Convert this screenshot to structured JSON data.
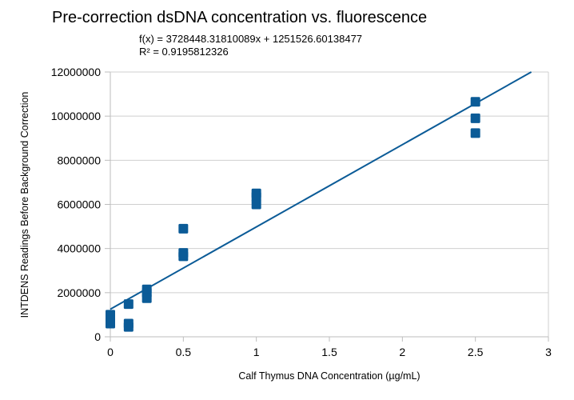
{
  "chart_data": {
    "type": "scatter",
    "title": "Pre-correction dsDNA concentration vs. fluorescence",
    "trendline": {
      "equation": "f(x) = 3728448.31810089x + 1251526.60138477",
      "r_squared": "R² = 0.9195812326",
      "slope": 3728448.31810089,
      "intercept": 1251526.60138477
    },
    "xlabel": "Calf Thymus DNA Concentration (µg/mL)",
    "ylabel": "INTDENS Readings Before Background Correction",
    "xlim": [
      0,
      3
    ],
    "ylim": [
      0,
      12000000
    ],
    "x_ticks": [
      "0",
      "0.5",
      "1",
      "1.5",
      "2",
      "2.5",
      "3"
    ],
    "y_ticks": [
      "0",
      "2000000",
      "4000000",
      "6000000",
      "8000000",
      "10000000",
      "12000000"
    ],
    "grid": "horizontal",
    "legend": "none",
    "marker_color": "#0b5b97",
    "line_color": "#0b5b97",
    "series": [
      {
        "name": "Readings",
        "points": [
          [
            0,
            1000000
          ],
          [
            0,
            750000
          ],
          [
            0,
            600000
          ],
          [
            0.125,
            1480000
          ],
          [
            0.125,
            600000
          ],
          [
            0.125,
            450000
          ],
          [
            0.25,
            2150000
          ],
          [
            0.25,
            2000000
          ],
          [
            0.25,
            1750000
          ],
          [
            0.5,
            4900000
          ],
          [
            0.5,
            3800000
          ],
          [
            0.5,
            3650000
          ],
          [
            1,
            6500000
          ],
          [
            1,
            6350000
          ],
          [
            1,
            6000000
          ],
          [
            2.5,
            10650000
          ],
          [
            2.5,
            9900000
          ],
          [
            2.5,
            9230000
          ]
        ]
      }
    ]
  }
}
